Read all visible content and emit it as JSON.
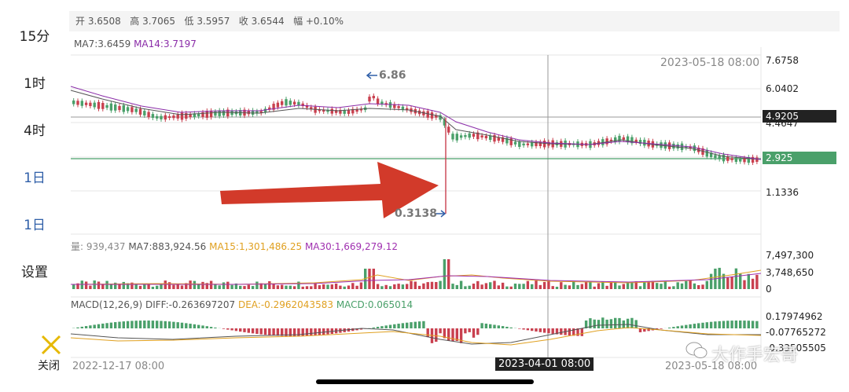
{
  "ohlc": {
    "open": "开 3.6508",
    "high": "高 3.7065",
    "low": "低 3.5957",
    "close": "收 3.6544",
    "change": "幅 +0.10%"
  },
  "sidebar": {
    "items": [
      {
        "label": "15分",
        "active": false
      },
      {
        "label": "1时",
        "active": false
      },
      {
        "label": "4时",
        "active": false
      },
      {
        "label": "1日",
        "active": true
      },
      {
        "label": "1日",
        "active": true
      },
      {
        "label": "设置",
        "active": false
      },
      {
        "label": "关闭",
        "active": false
      }
    ]
  },
  "ma": {
    "ma7": "MA7:3.6459",
    "ma14": "MA14:3.7197"
  },
  "price_axis": [
    "7.6758",
    "6.0402",
    "4.4647",
    "1.1336"
  ],
  "crosshair_time_top": "2023-05-18 08:00",
  "crosshair_price": "4.9205",
  "current_price": "2.925",
  "max_marker": "6.86",
  "min_marker": "0.3138",
  "volume": {
    "title": "量: 939,437",
    "ma7": "MA7:883,924.56",
    "ma15": "MA15:1,301,486.25",
    "ma30": "MA30:1,669,279.12",
    "axis": [
      "7,497,300",
      "3,748,650",
      "0"
    ]
  },
  "macd": {
    "title": "MACD(12,26,9)",
    "diff": "DIFF:-0.263697207",
    "dea": "DEA:-0.2962043583",
    "macd": "MACD:0.065014",
    "axis": [
      "0.17974962",
      "-0.07765272",
      "-0.33505505"
    ]
  },
  "time_axis": {
    "start": "2022-12-17 08:00",
    "mid": "2023-04-01 08:00",
    "end": "2023-05-18 08:00"
  },
  "watermark": "大作手宏哥",
  "colors": {
    "up": "#4aa06a",
    "down": "#c9404f",
    "ma7": "#555555",
    "ma14": "#8a2ca8",
    "ma15": "#e0a020",
    "ma30": "#a030b0",
    "arrow": "#d23a2a",
    "accent": "#2f5fa8"
  }
}
